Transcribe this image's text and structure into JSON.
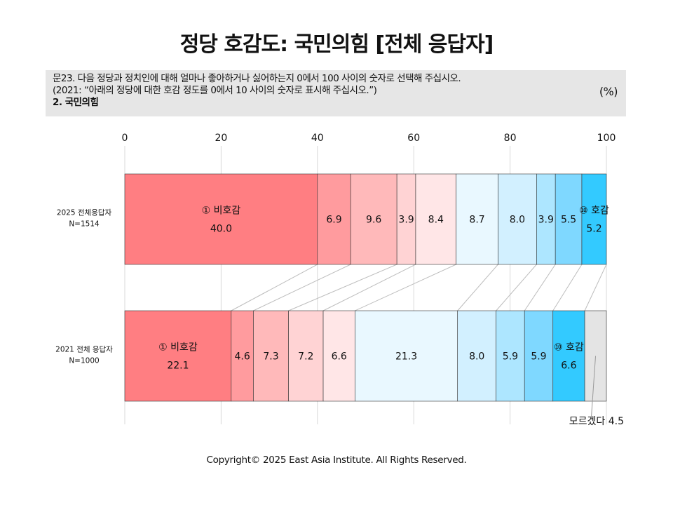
{
  "title": "정당 호감도: 국민의힘 [전체 응답자]",
  "question": {
    "line1": "문23. 다음 정당과 정치인에 대해 얼마나 좋아하거나 싫어하는지 0에서 100 사이의 숫자로 선택해 주십시오.",
    "line2": "(2021: “아래의 정당에 대한 호감 정도를 0에서 10 사이의 숫자로 표시해 주십시오.”)",
    "line3": "2. 국민의힘",
    "unit": "(%)"
  },
  "copyright": "Copyright© 2025 East Asia Institute. All Rights Reserved.",
  "chart_data": {
    "type": "bar",
    "orientation": "horizontal-stacked",
    "xlim": [
      0,
      100
    ],
    "ticks": [
      "0",
      "20",
      "40",
      "60",
      "80",
      "100"
    ],
    "grid": true,
    "rows": [
      {
        "line1": "2025 전체응답자",
        "line2": "N=1514",
        "values": [
          40.0,
          6.9,
          9.6,
          3.9,
          8.4,
          8.7,
          8.0,
          3.9,
          5.5,
          5.2
        ],
        "labels": [
          "40.0",
          "6.9",
          "9.6",
          "3.9",
          "8.4",
          "8.7",
          "8.0",
          "3.9",
          "5.5",
          "5.2"
        ],
        "first_category": "① 비호감",
        "last_category": "⑩ 호감"
      },
      {
        "line1": "2021 전체 응답자",
        "line2": "N=1000",
        "values": [
          22.1,
          4.6,
          7.3,
          7.2,
          6.6,
          21.3,
          8.0,
          5.9,
          5.9,
          6.6,
          4.5
        ],
        "labels": [
          "22.1",
          "4.6",
          "7.3",
          "7.2",
          "6.6",
          "21.3",
          "8.0",
          "5.9",
          "5.9",
          "6.6",
          ""
        ],
        "first_category": "① 비호감",
        "last_category": "⑩ 호감",
        "dont_know_label": "모르겠다 4.5"
      }
    ],
    "colors": [
      "#ff7e82",
      "#ff9b9e",
      "#ffb9ba",
      "#ffd3d4",
      "#ffe6e7",
      "#e9f8ff",
      "#d2f0ff",
      "#ade6ff",
      "#7fd8ff",
      "#33caff",
      "#e4e4e4"
    ]
  }
}
